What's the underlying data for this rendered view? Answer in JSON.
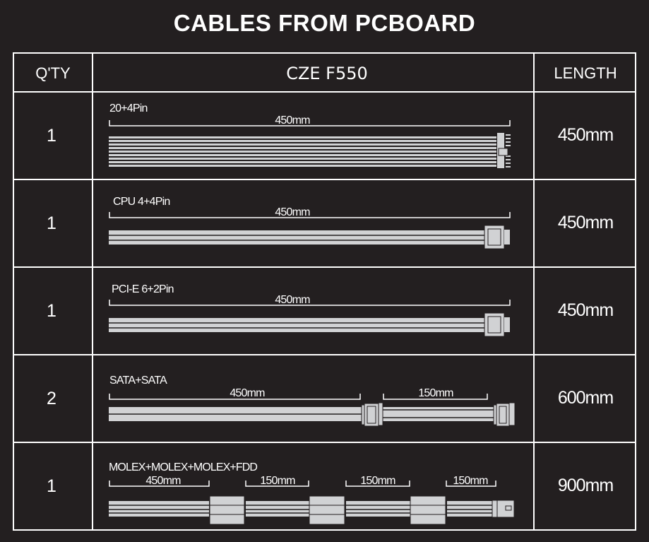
{
  "title": "CABLES FROM PCBOARD",
  "headers": {
    "qty": "Q'TY",
    "model": "CZE F550",
    "length": "LENGTH"
  },
  "colors": {
    "background": "#231f20",
    "cable": "#d1d2d4",
    "text": "#ffffff"
  },
  "rows": [
    {
      "qty": "1",
      "name": "20+4Pin",
      "segments": [
        "450mm"
      ],
      "length": "450mm"
    },
    {
      "qty": "1",
      "name": "CPU 4+4Pin",
      "segments": [
        "450mm"
      ],
      "length": "450mm"
    },
    {
      "qty": "1",
      "name": "PCI-E 6+2Pin",
      "segments": [
        "450mm"
      ],
      "length": "450mm"
    },
    {
      "qty": "2",
      "name": "SATA+SATA",
      "segments": [
        "450mm",
        "150mm"
      ],
      "length": "600mm"
    },
    {
      "qty": "1",
      "name": "MOLEX+MOLEX+MOLEX+FDD",
      "segments": [
        "450mm",
        "150mm",
        "150mm",
        "150mm"
      ],
      "length": "900mm"
    }
  ]
}
